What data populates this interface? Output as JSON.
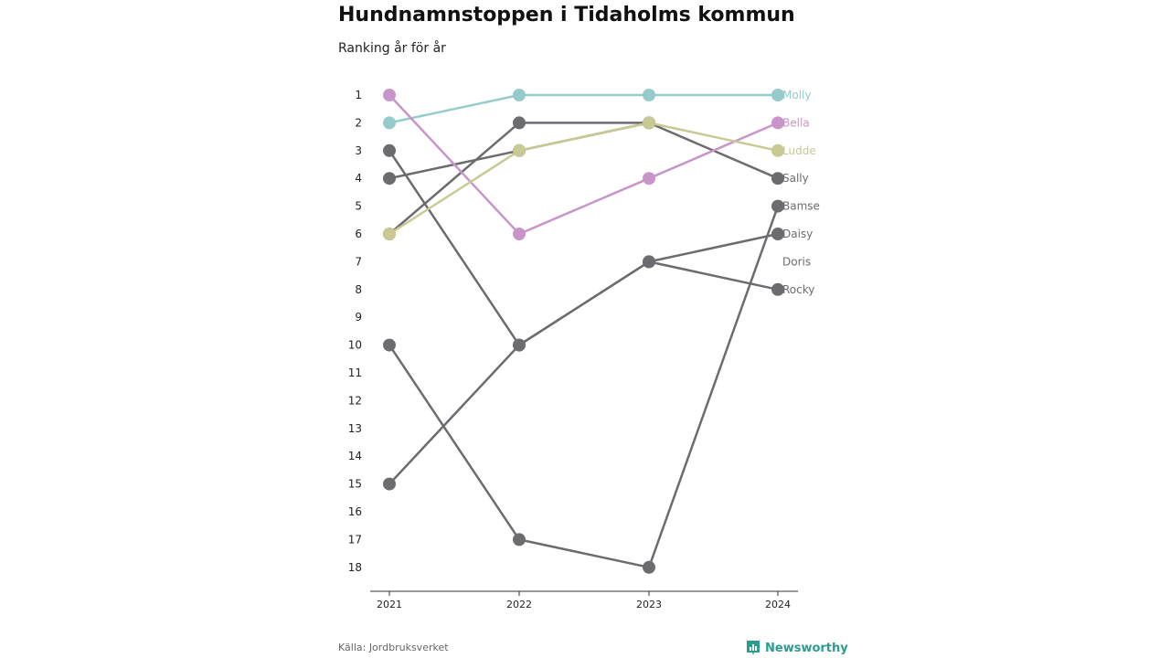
{
  "header": {
    "title": "Hundnamnstoppen i Tidaholms kommun",
    "subtitle": "Ranking år för år"
  },
  "footer": {
    "source": "Källa: Jordbruksverket",
    "brand": "Newsworthy",
    "brand_icon": "bar-chart-icon",
    "brand_color": "#2a9d8f"
  },
  "chart_data": {
    "type": "line",
    "x": [
      2021,
      2022,
      2023,
      2024
    ],
    "x_tick_labels": [
      "2021",
      "2022",
      "2023",
      "2024"
    ],
    "y_tick_labels": [
      "1",
      "2",
      "3",
      "4",
      "5",
      "6",
      "7",
      "8",
      "9",
      "10",
      "11",
      "12",
      "13",
      "14",
      "15",
      "16",
      "17",
      "18"
    ],
    "ylim": [
      1,
      18
    ],
    "y_inverted": true,
    "grid": false,
    "legend": "labels at right end of lines",
    "series": [
      {
        "name": "Molly",
        "values": [
          2,
          1,
          1,
          1
        ],
        "color": "#96cbcb"
      },
      {
        "name": "Bella",
        "values": [
          1,
          6,
          4,
          2
        ],
        "color": "#c994c9"
      },
      {
        "name": "Ludde",
        "values": [
          6,
          3,
          2,
          3
        ],
        "color": "#c9c994"
      },
      {
        "name": "Sally",
        "values": [
          4,
          3,
          2,
          4
        ],
        "color": "#6c6b70"
      },
      {
        "name": "Bamse",
        "values": [
          10,
          17,
          18,
          5
        ],
        "color": "#6c6b70"
      },
      {
        "name": "Daisy",
        "values": [
          15,
          10,
          7,
          6
        ],
        "color": "#6c6b70"
      },
      {
        "name": "Doris",
        "values": [
          null,
          null,
          null,
          null
        ],
        "color": "#6c6b70"
      },
      {
        "name": "Rocky",
        "values": [
          3,
          10,
          7,
          8
        ],
        "color": "#6c6b70"
      },
      {
        "name": "",
        "values": [
          6,
          2,
          2,
          null
        ],
        "color": "#6c6b70"
      }
    ]
  }
}
